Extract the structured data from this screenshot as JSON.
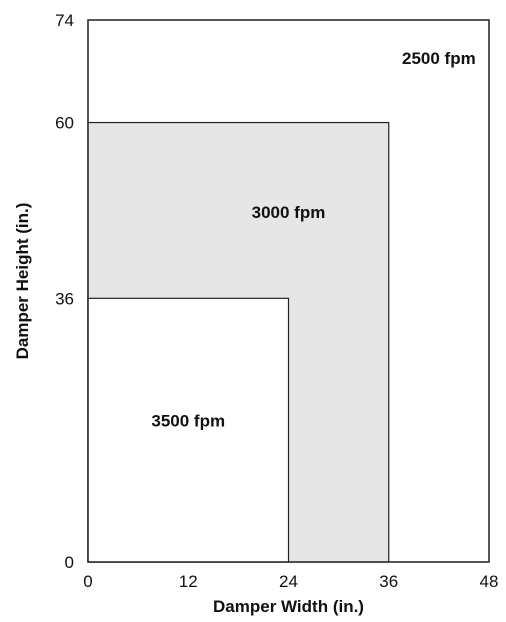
{
  "chart_data": {
    "type": "area",
    "title": "",
    "xlabel": "Damper Width (in.)",
    "ylabel": "Damper Height (in.)",
    "xlim": [
      0,
      48
    ],
    "ylim": [
      0,
      74
    ],
    "x_ticks": [
      "0",
      "12",
      "24",
      "36",
      "48"
    ],
    "y_ticks": [
      "0",
      "36",
      "60",
      "74"
    ],
    "grid": false,
    "regions": [
      {
        "label": "2500 fpm",
        "max_width": 48,
        "max_height": 74,
        "fill": "#ffffff"
      },
      {
        "label": "3000 fpm",
        "max_width": 36,
        "max_height": 60,
        "fill": "#e6e6e6"
      },
      {
        "label": "3500 fpm",
        "max_width": 24,
        "max_height": 36,
        "fill": "#ffffff"
      }
    ]
  }
}
